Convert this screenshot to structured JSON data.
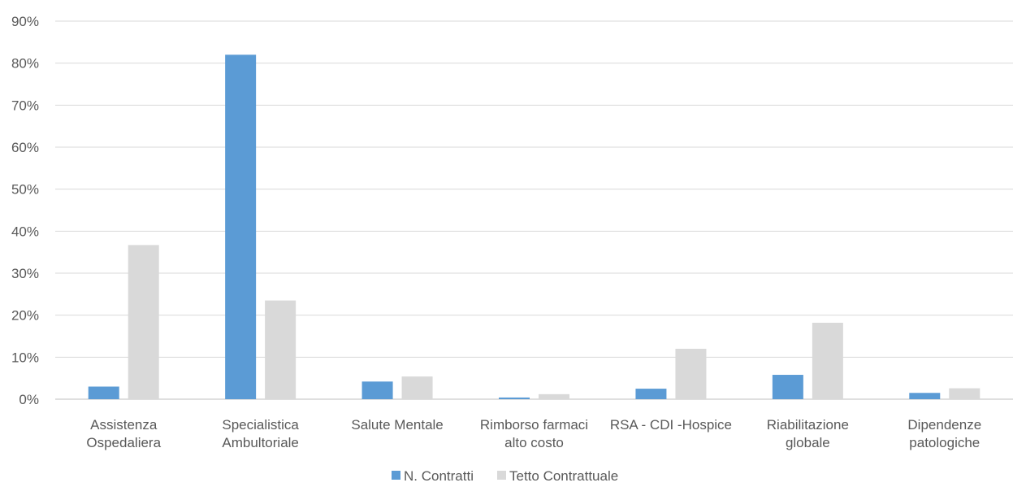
{
  "chart_data": {
    "type": "bar",
    "title": "",
    "xlabel": "",
    "ylabel": "",
    "ylim": [
      0,
      90
    ],
    "y_tick_step": 10,
    "y_tick_suffix": "%",
    "grid": true,
    "legend_position": "bottom",
    "categories": [
      [
        "Assistenza",
        "Ospedaliera"
      ],
      [
        "Specialistica",
        "Ambultoriale"
      ],
      [
        "Salute Mentale"
      ],
      [
        "Rimborso farmaci",
        "alto costo"
      ],
      [
        "RSA - CDI -Hospice"
      ],
      [
        "Riabilitazione",
        "globale"
      ],
      [
        "Dipendenze",
        "patologiche"
      ]
    ],
    "series": [
      {
        "name": "N. Contratti",
        "color": "#5b9bd5",
        "values": [
          3.0,
          82.0,
          4.2,
          0.4,
          2.5,
          5.8,
          1.5
        ]
      },
      {
        "name": "Tetto Contrattuale",
        "color": "#d9d9d9",
        "values": [
          36.7,
          23.5,
          5.4,
          1.2,
          12.0,
          18.2,
          2.6
        ]
      }
    ]
  }
}
